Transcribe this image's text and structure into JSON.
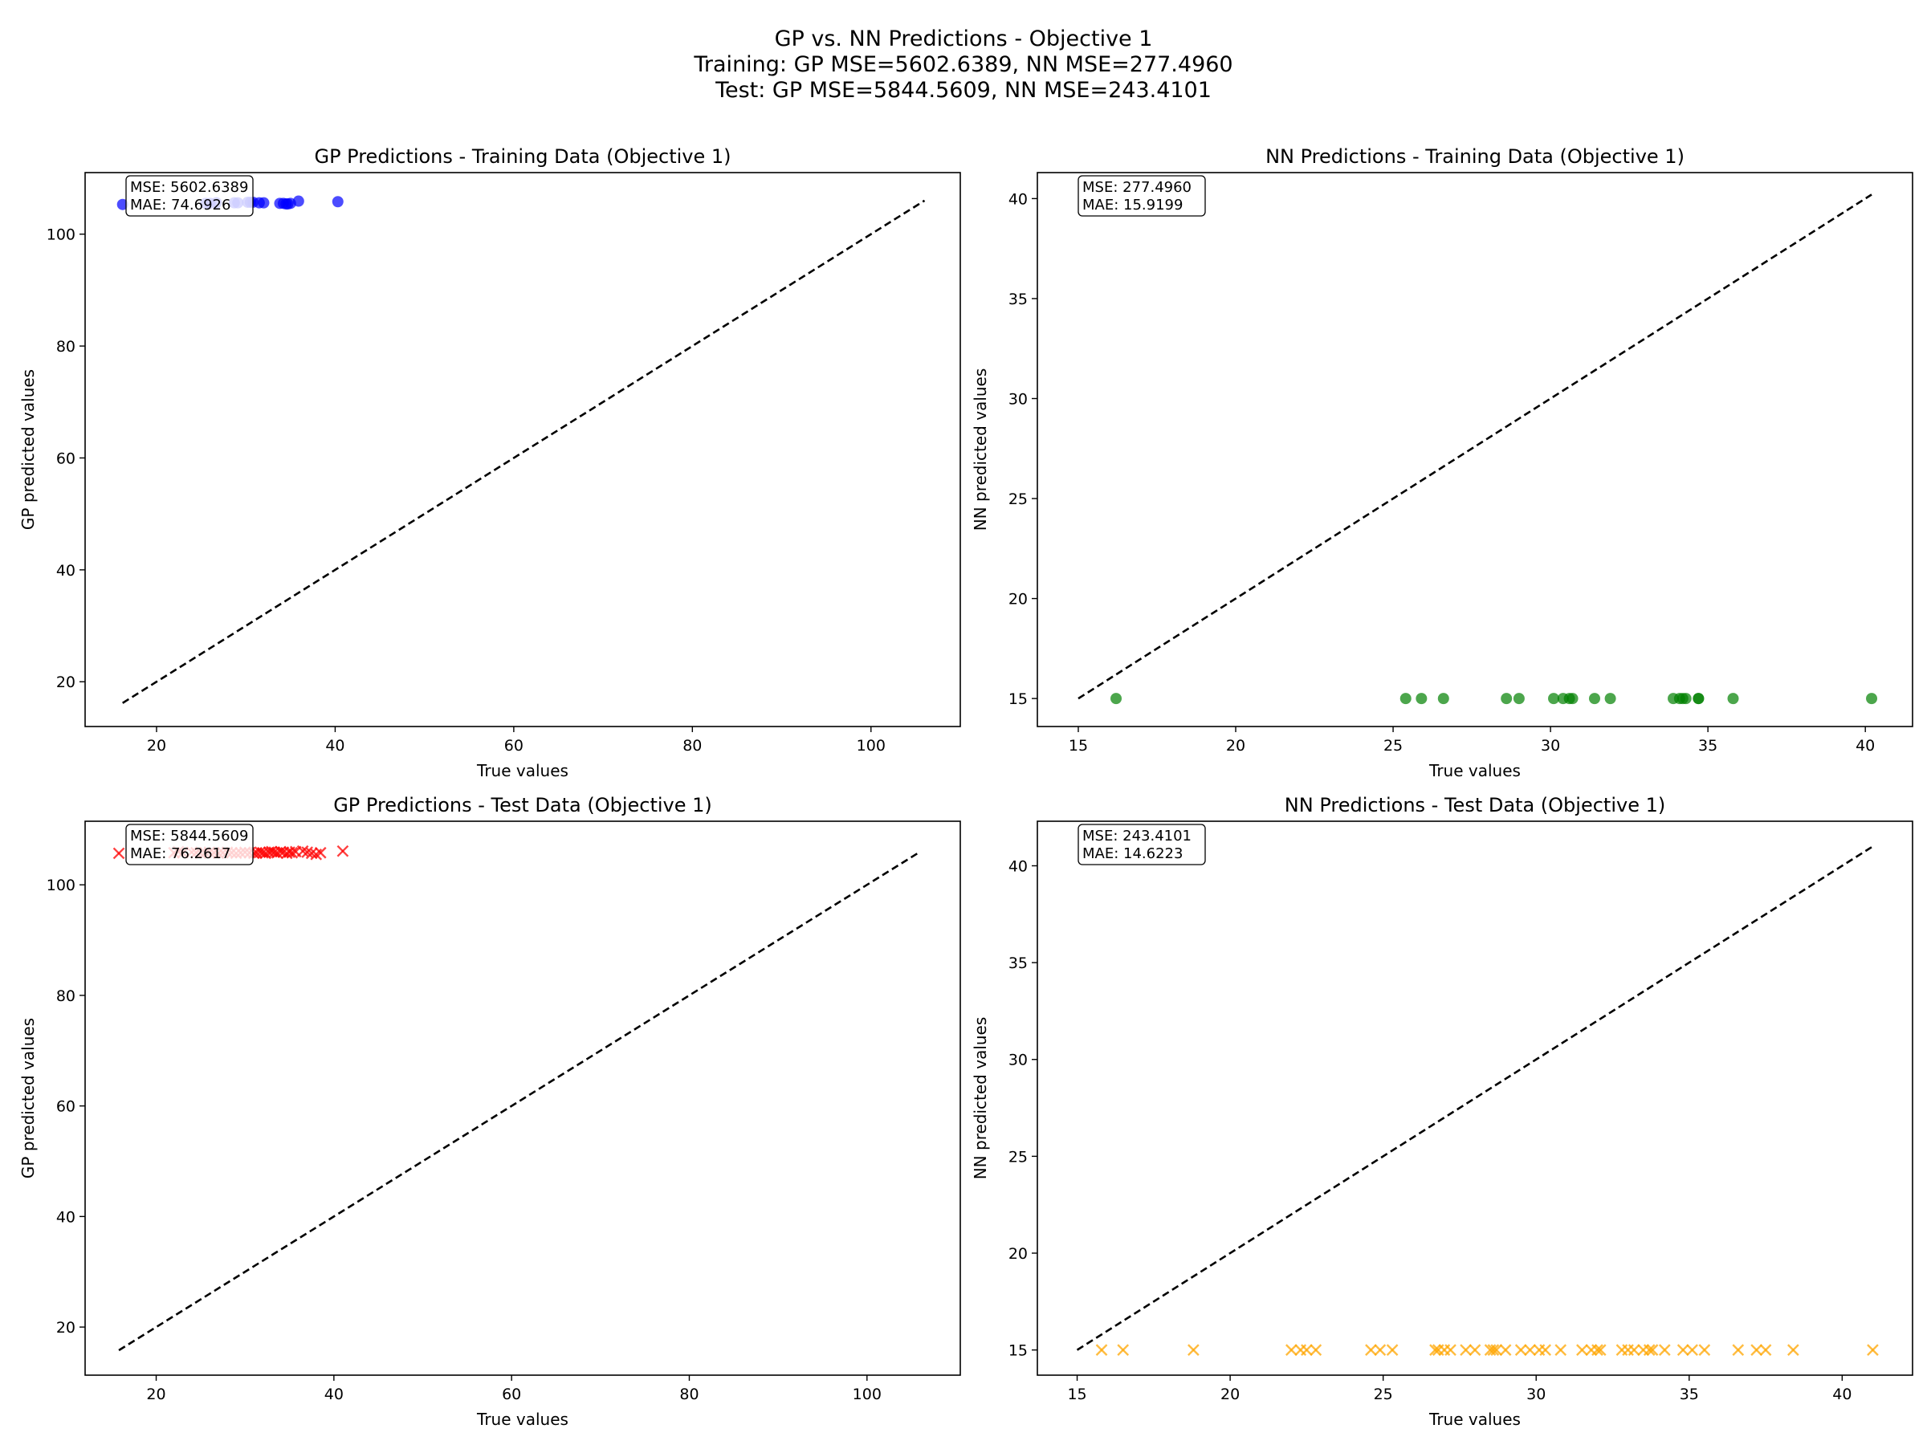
{
  "suptitle": {
    "line1": "GP vs. NN Predictions - Objective 1",
    "line2": "Training: GP MSE=5602.6389, NN MSE=277.4960",
    "line3": "Test: GP MSE=5844.5609, NN MSE=243.4101"
  },
  "chart_data": [
    {
      "type": "scatter",
      "title": "GP Predictions - Training Data (Objective 1)",
      "xlabel": "True values",
      "ylabel": "GP predicted values",
      "xlim": [
        12,
        110
      ],
      "ylim": [
        12,
        111
      ],
      "xticks": [
        20,
        40,
        60,
        80,
        100
      ],
      "yticks": [
        20,
        40,
        60,
        80,
        100
      ],
      "marker": "circle",
      "color": "#0000ff",
      "stats": [
        "MSE: 5602.6389",
        "MAE: 74.6926"
      ],
      "diagonal": [
        16.2,
        106.0
      ],
      "points": {
        "x": [
          16.2,
          25.5,
          26.0,
          26.7,
          28.7,
          29.1,
          30.2,
          30.5,
          30.8,
          31.5,
          32.0,
          33.8,
          34.2,
          34.5,
          34.7,
          35.0,
          35.9,
          40.3
        ],
        "y": [
          105.3,
          105.5,
          105.5,
          105.6,
          105.6,
          105.6,
          105.7,
          105.7,
          105.7,
          105.6,
          105.6,
          105.5,
          105.5,
          105.4,
          105.4,
          105.5,
          105.9,
          105.8
        ]
      }
    },
    {
      "type": "scatter",
      "title": "NN Predictions - Training Data (Objective 1)",
      "xlabel": "True values",
      "ylabel": "NN predicted values",
      "xlim": [
        13.7,
        41.5
      ],
      "ylim": [
        13.6,
        41.3
      ],
      "xticks": [
        15,
        20,
        25,
        30,
        35,
        40
      ],
      "yticks": [
        15,
        20,
        25,
        30,
        35,
        40
      ],
      "marker": "circle",
      "color": "#008000",
      "stats": [
        "MSE: 277.4960",
        "MAE: 15.9199"
      ],
      "diagonal": [
        15.0,
        40.2
      ],
      "points": {
        "x": [
          16.2,
          25.4,
          25.9,
          26.6,
          28.6,
          29.0,
          30.1,
          30.4,
          30.6,
          30.7,
          31.4,
          31.9,
          33.9,
          34.1,
          34.2,
          34.3,
          34.7,
          34.7,
          35.8,
          40.2
        ],
        "y": [
          15,
          15,
          15,
          15,
          15,
          15,
          15,
          15,
          15,
          15,
          15,
          15,
          15,
          15,
          15,
          15,
          15,
          15,
          15,
          15
        ]
      }
    },
    {
      "type": "scatter",
      "title": "GP Predictions - Test Data (Objective 1)",
      "xlabel": "True values",
      "ylabel": "GP predicted values",
      "xlim": [
        12,
        110.5
      ],
      "ylim": [
        11.3,
        111.5
      ],
      "xticks": [
        20,
        40,
        60,
        80,
        100
      ],
      "yticks": [
        20,
        40,
        60,
        80,
        100
      ],
      "marker": "x",
      "color": "#ff0000",
      "stats": [
        "MSE: 5844.5609",
        "MAE: 76.2617"
      ],
      "diagonal": [
        15.8,
        106.0
      ],
      "points": {
        "x": [
          15.8,
          22.0,
          22.5,
          23.0,
          24.0,
          24.5,
          25.0,
          25.5,
          26.0,
          26.5,
          27.0,
          27.5,
          28.0,
          28.5,
          29.0,
          29.5,
          30.0,
          30.5,
          31.0,
          31.3,
          31.7,
          32.0,
          32.3,
          32.7,
          33.0,
          33.3,
          33.6,
          34.0,
          34.3,
          34.7,
          35.0,
          35.3,
          35.7,
          36.5,
          37.0,
          37.5,
          38.0,
          38.5,
          41.0
        ],
        "y": [
          105.7,
          105.8,
          106.0,
          105.8,
          105.9,
          105.8,
          105.7,
          105.8,
          105.9,
          105.8,
          105.7,
          105.8,
          105.9,
          105.8,
          105.7,
          105.8,
          105.9,
          105.8,
          105.7,
          105.8,
          105.9,
          105.8,
          105.7,
          105.9,
          106.0,
          105.9,
          105.8,
          106.0,
          105.9,
          105.7,
          105.9,
          105.8,
          106.0,
          106.1,
          105.9,
          105.7,
          105.5,
          105.8,
          106.1
        ]
      }
    },
    {
      "type": "scatter",
      "title": "NN Predictions - Test Data (Objective 1)",
      "xlabel": "True values",
      "ylabel": "NN predicted values",
      "xlim": [
        13.7,
        42.3
      ],
      "ylim": [
        13.7,
        42.3
      ],
      "xticks": [
        15,
        20,
        25,
        30,
        35,
        40
      ],
      "yticks": [
        15,
        20,
        25,
        30,
        35,
        40
      ],
      "marker": "x",
      "color": "#ffa500",
      "stats": [
        "MSE: 243.4101",
        "MAE: 14.6223"
      ],
      "diagonal": [
        15.0,
        41.0
      ],
      "points": {
        "x": [
          15.8,
          16.5,
          18.8,
          22.0,
          22.3,
          22.5,
          22.8,
          24.6,
          24.9,
          25.3,
          26.7,
          26.8,
          27.0,
          27.2,
          27.7,
          28.0,
          28.5,
          28.6,
          28.7,
          29.0,
          29.5,
          29.8,
          30.1,
          30.3,
          30.8,
          31.5,
          31.8,
          32.0,
          32.1,
          32.8,
          33.0,
          33.2,
          33.5,
          33.7,
          33.8,
          34.2,
          34.8,
          35.1,
          35.5,
          36.6,
          37.2,
          37.5,
          38.4,
          41.0
        ],
        "y": [
          15,
          15,
          15,
          15,
          15,
          15,
          15,
          15,
          15,
          15,
          15,
          15,
          15,
          15,
          15,
          15,
          15,
          15,
          15,
          15,
          15,
          15,
          15,
          15,
          15,
          15,
          15,
          15,
          15,
          15,
          15,
          15,
          15,
          15,
          15,
          15,
          15,
          15,
          15,
          15,
          15,
          15,
          15,
          15
        ]
      }
    }
  ]
}
